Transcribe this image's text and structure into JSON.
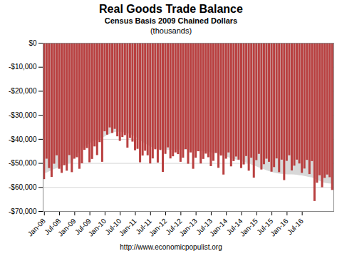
{
  "chart_data": {
    "type": "bar",
    "title": "Real Goods Trade Balance",
    "subtitle": [
      "Census Basis 2009 Chained Dollars",
      "(thousands)"
    ],
    "footer": "http://www.economicpopulist.org",
    "categories": [
      "Jan-08",
      null,
      null,
      null,
      null,
      null,
      "Jul-08",
      null,
      null,
      null,
      null,
      null,
      "Jan-09",
      null,
      null,
      null,
      null,
      null,
      "Jul-09",
      null,
      null,
      null,
      null,
      null,
      "Jan-10",
      null,
      null,
      null,
      null,
      null,
      "Jul-10",
      null,
      null,
      null,
      null,
      null,
      "Jan-11",
      null,
      null,
      null,
      null,
      null,
      "Jul-11",
      null,
      null,
      null,
      null,
      null,
      "Jan-12",
      null,
      null,
      null,
      null,
      null,
      "Jul-12",
      null,
      null,
      null,
      null,
      null,
      "Jan-13",
      null,
      null,
      null,
      null,
      null,
      "Jul-13",
      null,
      null,
      null,
      null,
      null,
      "Jan-14",
      null,
      null,
      null,
      null,
      null,
      "Jul-14",
      null,
      null,
      null,
      null,
      null,
      "Jan-15",
      null,
      null,
      null,
      null,
      null,
      "Jul-15",
      null,
      null,
      null,
      null,
      null,
      "Jan-16",
      null,
      null,
      null,
      null,
      null,
      "Jul-16",
      null,
      null,
      null,
      null,
      null,
      null,
      null,
      null,
      null,
      null,
      null,
      null
    ],
    "series": [
      {
        "type": "area",
        "color": "#d8d8d8",
        "values": [
          -54200,
          -54000,
          -53500,
          -53000,
          -52500,
          -52100,
          -51700,
          -51200,
          -50700,
          -50400,
          -50100,
          -49900,
          -47800,
          -46500,
          -45200,
          -44100,
          -43200,
          -42500,
          -41800,
          -41200,
          -40700,
          -40300,
          -40000,
          -39600,
          -38900,
          -38300,
          -37800,
          -37400,
          -37100,
          -37000,
          -37000,
          -37100,
          -37300,
          -37600,
          -37900,
          -38400,
          -39000,
          -39700,
          -40500,
          -41200,
          -41900,
          -42500,
          -43100,
          -43500,
          -43800,
          -44100,
          -44200,
          -44400,
          -44500,
          -44500,
          -44500,
          -44500,
          -44400,
          -44400,
          -44500,
          -44500,
          -44500,
          -44600,
          -44600,
          -44700,
          -44800,
          -44900,
          -45000,
          -45100,
          -45200,
          -45300,
          -45500,
          -45700,
          -45900,
          -46200,
          -46500,
          -46800,
          -47200,
          -47600,
          -48000,
          -48300,
          -48600,
          -48900,
          -49200,
          -49500,
          -49800,
          -50200,
          -50600,
          -51000,
          -51400,
          -51800,
          -52200,
          -52600,
          -53000,
          -53400,
          -53700,
          -54000,
          -54200,
          -54400,
          -54500,
          -54600,
          -54700,
          -54700,
          -54700,
          -54800,
          -54900,
          -55100,
          -55200,
          -55400,
          -55600,
          -55800,
          -56000,
          -56500,
          -57000,
          -57400,
          -57900,
          -58200,
          -58400,
          -58500,
          -58600
        ]
      },
      {
        "type": "bar",
        "color": "#b94040",
        "values": [
          -56700,
          -48200,
          -52100,
          -55800,
          -50300,
          -46800,
          -52400,
          -54100,
          -50900,
          -53200,
          -46700,
          -53800,
          -48200,
          -47600,
          -52400,
          -50100,
          -44500,
          -43800,
          -49700,
          -48300,
          -43100,
          -46700,
          -41300,
          -49500,
          -36800,
          -38200,
          -35200,
          -37500,
          -35800,
          -38900,
          -40800,
          -39200,
          -38400,
          -43600,
          -39600,
          -41100,
          -44700,
          -44100,
          -49700,
          -46900,
          -44900,
          -46800,
          -50200,
          -48100,
          -44300,
          -49800,
          -44600,
          -53700,
          -46200,
          -43500,
          -48100,
          -47200,
          -45600,
          -46300,
          -49500,
          -47800,
          -44200,
          -50300,
          -45600,
          -52400,
          -47800,
          -45100,
          -50200,
          -48300,
          -46100,
          -47600,
          -51300,
          -49100,
          -45800,
          -52000,
          -46900,
          -54800,
          -48200,
          -45600,
          -51400,
          -49200,
          -47300,
          -48600,
          -52100,
          -50600,
          -47100,
          -53200,
          -47800,
          -56100,
          -48800,
          -46200,
          -52700,
          -50500,
          -48200,
          -49500,
          -53600,
          -51700,
          -48100,
          -53800,
          -48600,
          -57100,
          -49100,
          -46800,
          -53100,
          -51100,
          -48600,
          -50200,
          -54100,
          -52300,
          -48700,
          -54600,
          -49200,
          -65800,
          -58200,
          -55100,
          -60100,
          -56200,
          -54800,
          -55900,
          -61200
        ]
      }
    ],
    "ylim": [
      -70000,
      0
    ],
    "yticks": [
      {
        "value": 0,
        "label": "$0"
      },
      {
        "value": -10000,
        "label": "-$10,000"
      },
      {
        "value": -20000,
        "label": "-$20,000"
      },
      {
        "value": -30000,
        "label": "-$30,000"
      },
      {
        "value": -40000,
        "label": "-$40,000"
      },
      {
        "value": -50000,
        "label": "-$50,000"
      },
      {
        "value": -60000,
        "label": "-$60,000"
      },
      {
        "value": -70000,
        "label": "-$70,000"
      }
    ],
    "grid": true
  }
}
